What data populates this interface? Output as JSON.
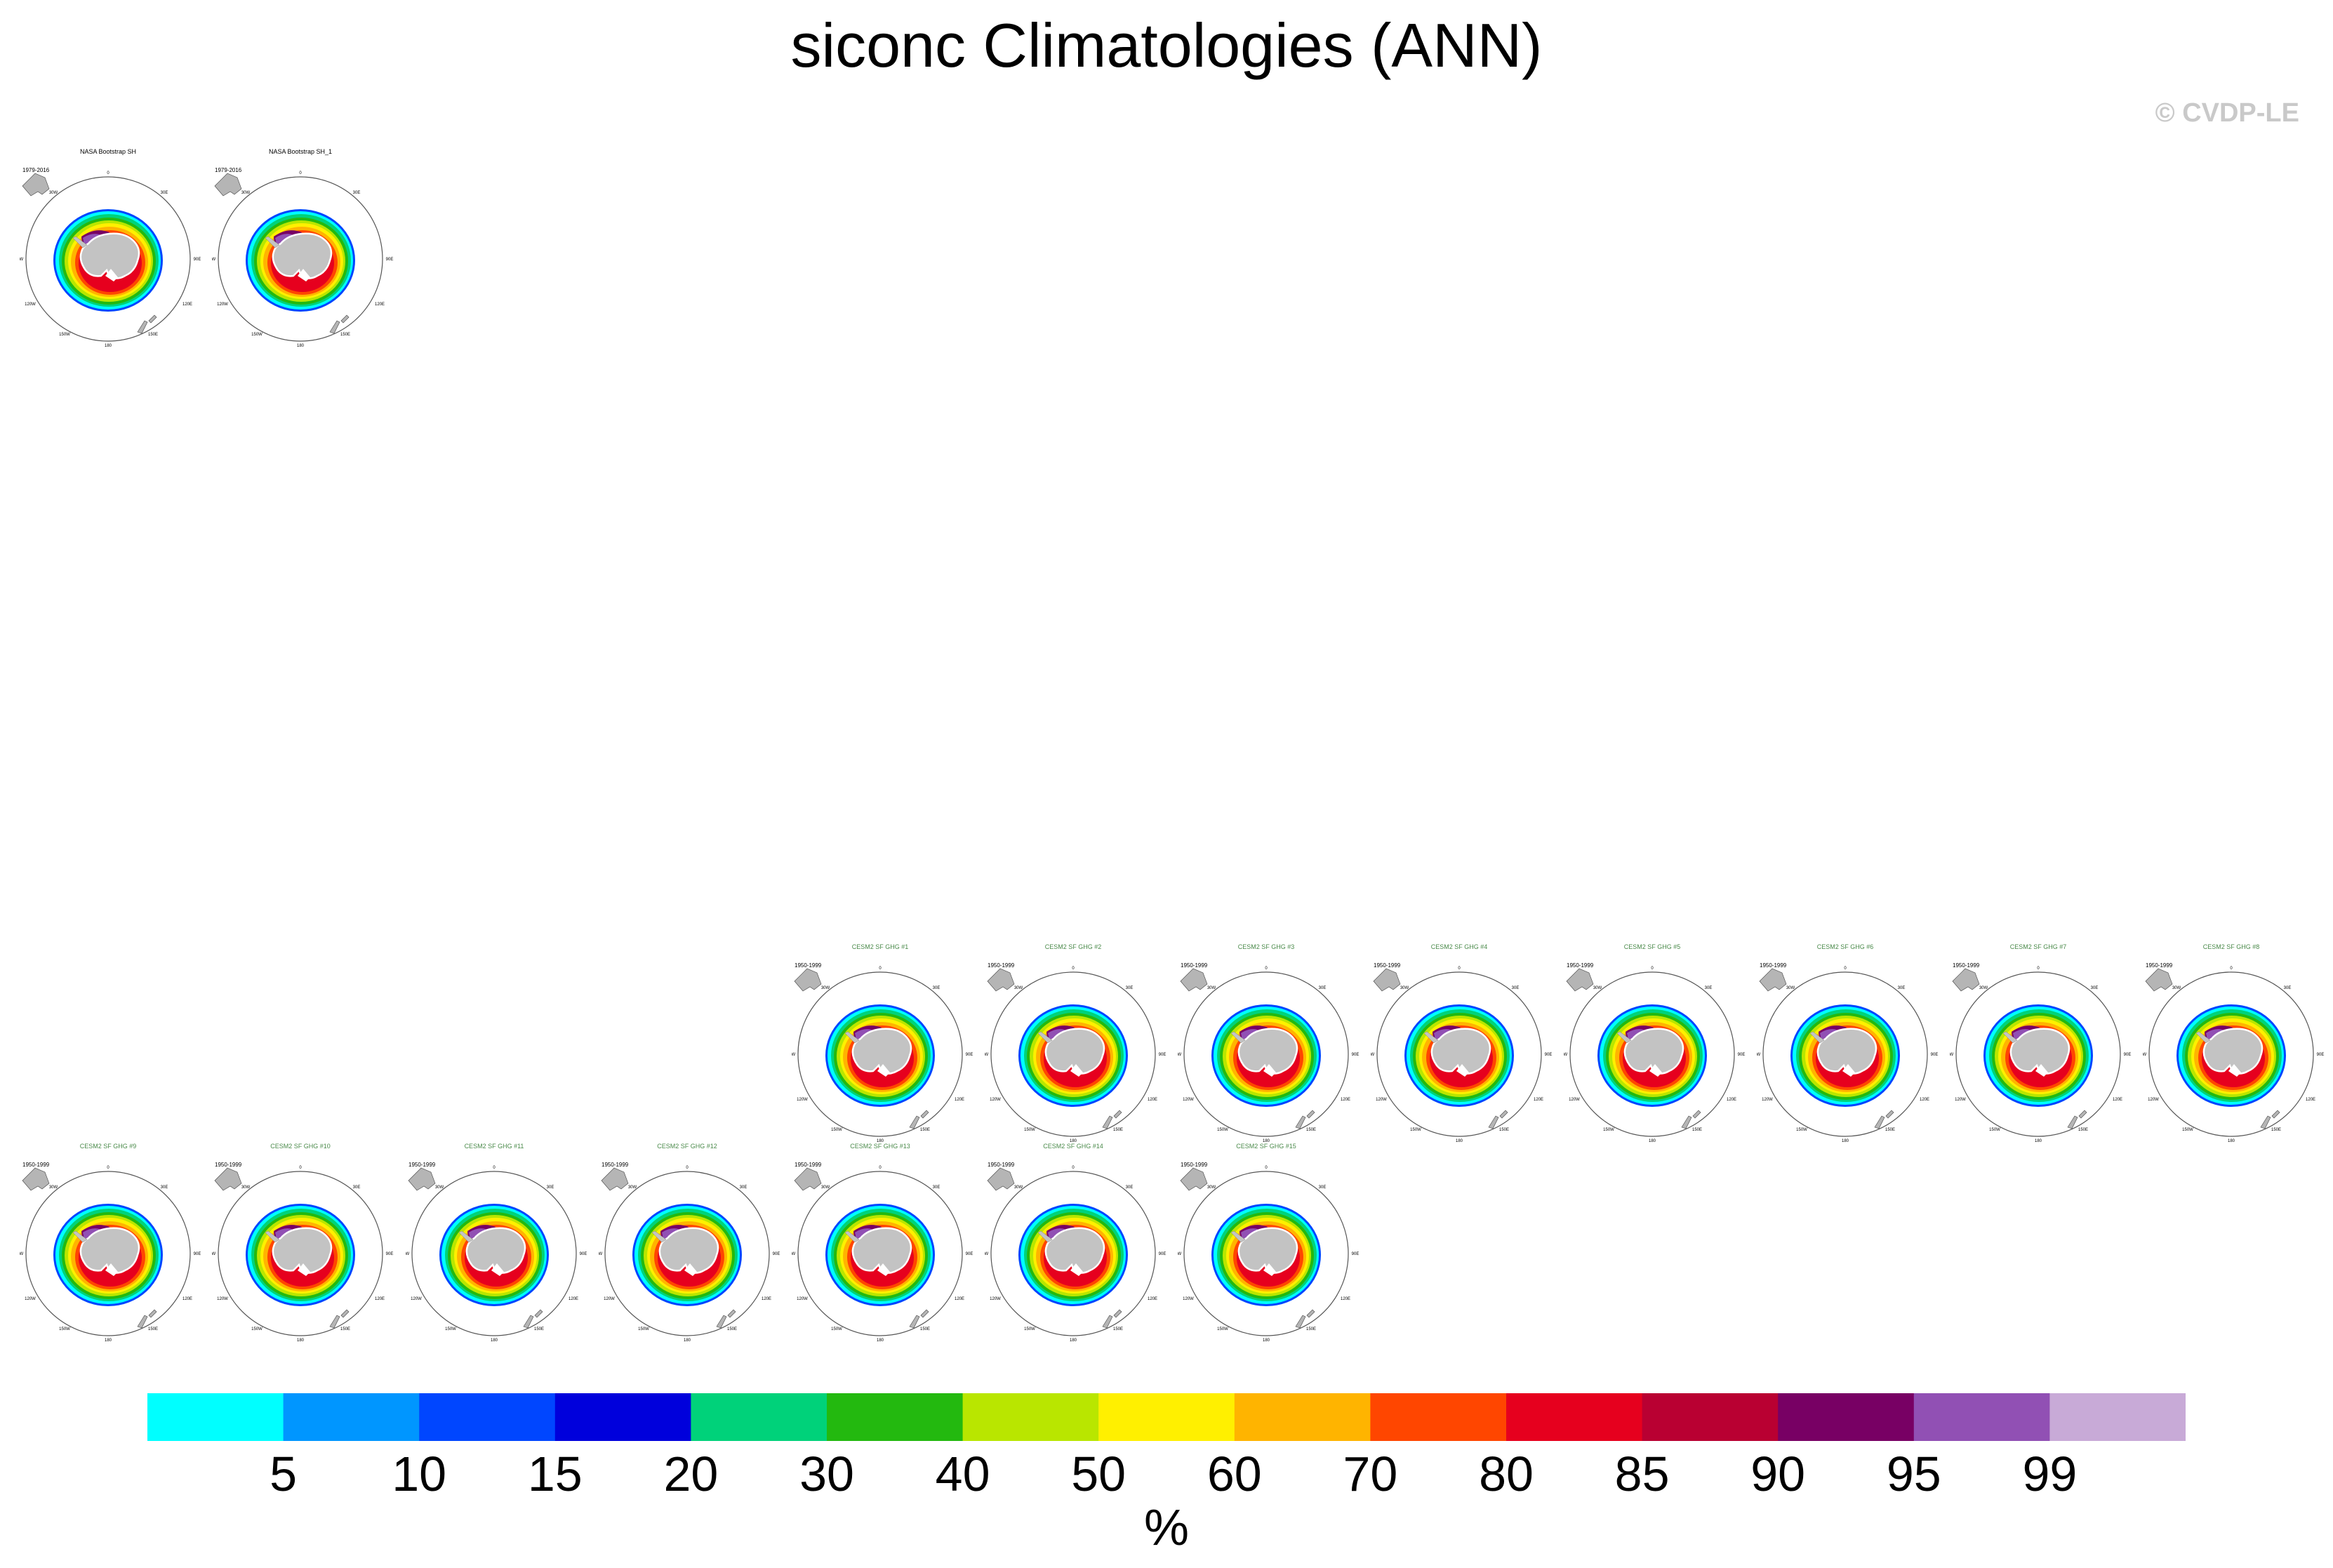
{
  "title": "siconc Climatologies (ANN)",
  "copyright": "© CVDP-LE",
  "chart_data": {
    "type": "map-panels",
    "title": "siconc Climatologies (ANN)",
    "variable": "siconc",
    "season": "ANN",
    "units": "%",
    "colorbar": {
      "levels": [
        "5",
        "10",
        "15",
        "20",
        "30",
        "40",
        "50",
        "60",
        "70",
        "80",
        "85",
        "90",
        "95",
        "99"
      ],
      "colors": [
        "#00ffff",
        "#0096ff",
        "#0046ff",
        "#0000dc",
        "#00d27a",
        "#23b90f",
        "#b9e600",
        "#fff000",
        "#ffb400",
        "#ff4600",
        "#e6001e",
        "#b90032",
        "#780064",
        "#9150b4",
        "#c8aad7"
      ]
    },
    "panels": [
      {
        "name": "NASA Bootstrap SH",
        "period": "1979-2016",
        "obs": true
      },
      {
        "name": "NASA Bootstrap SH_1",
        "period": "1979-2016",
        "obs": true
      },
      {
        "name": "CESM2 SF GHG #1",
        "period": "1950-1999",
        "obs": false
      },
      {
        "name": "CESM2 SF GHG #2",
        "period": "1950-1999",
        "obs": false
      },
      {
        "name": "CESM2 SF GHG #3",
        "period": "1950-1999",
        "obs": false
      },
      {
        "name": "CESM2 SF GHG #4",
        "period": "1950-1999",
        "obs": false
      },
      {
        "name": "CESM2 SF GHG #5",
        "period": "1950-1999",
        "obs": false
      },
      {
        "name": "CESM2 SF GHG #6",
        "period": "1950-1999",
        "obs": false
      },
      {
        "name": "CESM2 SF GHG #7",
        "period": "1950-1999",
        "obs": false
      },
      {
        "name": "CESM2 SF GHG #8",
        "period": "1950-1999",
        "obs": false
      },
      {
        "name": "CESM2 SF GHG #9",
        "period": "1950-1999",
        "obs": false
      },
      {
        "name": "CESM2 SF GHG #10",
        "period": "1950-1999",
        "obs": false
      },
      {
        "name": "CESM2 SF GHG #11",
        "period": "1950-1999",
        "obs": false
      },
      {
        "name": "CESM2 SF GHG #12",
        "period": "1950-1999",
        "obs": false
      },
      {
        "name": "CESM2 SF GHG #13",
        "period": "1950-1999",
        "obs": false
      },
      {
        "name": "CESM2 SF GHG #14",
        "period": "1950-1999",
        "obs": false
      },
      {
        "name": "CESM2 SF GHG #15",
        "period": "1950-1999",
        "obs": false
      }
    ],
    "lon_labels": {
      "top": "0",
      "upper_left": "30W",
      "upper_right": "30E",
      "left": "90W",
      "right": "90E",
      "lower_left": "120W",
      "lower_right": "120E",
      "bottom_left": "150W",
      "bottom_right": "150E",
      "bottom": "180"
    }
  }
}
